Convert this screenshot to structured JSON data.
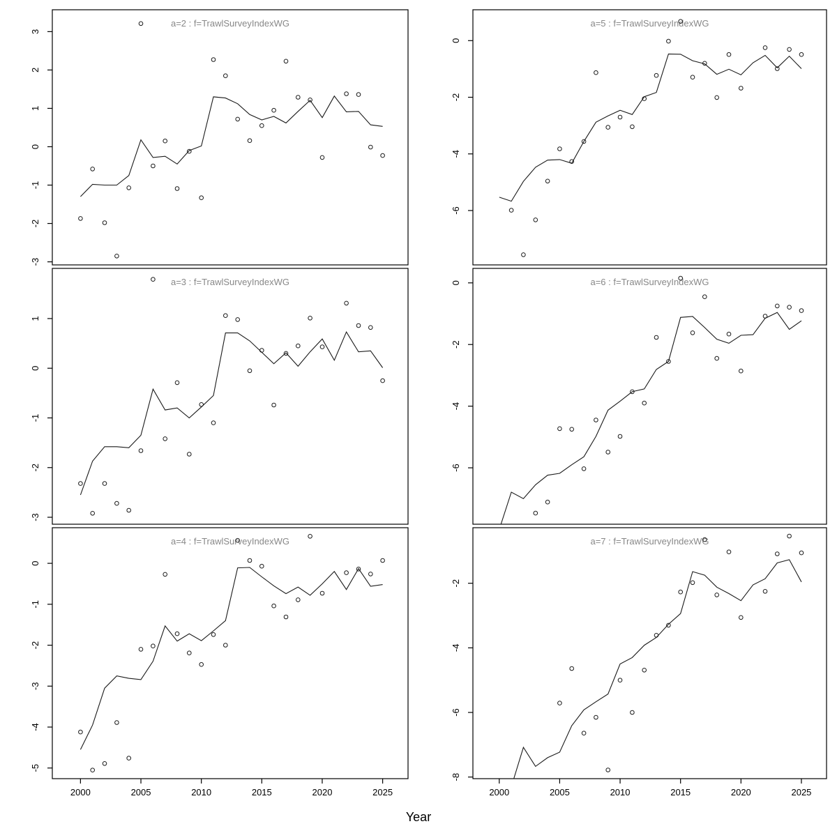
{
  "figure": {
    "xlabel": "Year",
    "background": "#ffffff",
    "title_color": "#888888",
    "axis_color": "#000000",
    "data_color": "#1a1a1a"
  },
  "chart_data": {
    "type": "scatter+line",
    "layout": "2x3 trellis (lattice), shared Year axis, no grid, no legend",
    "xlabel": "Year",
    "x_ticks": [
      2000,
      2005,
      2010,
      2015,
      2020,
      2025
    ],
    "x": [
      2000,
      2001,
      2002,
      2003,
      2004,
      2005,
      2006,
      2007,
      2008,
      2009,
      2010,
      2011,
      2012,
      2013,
      2014,
      2015,
      2016,
      2017,
      2018,
      2019,
      2020,
      2021,
      2022,
      2023,
      2024,
      2025
    ],
    "panels": [
      {
        "id": "a2",
        "label": "a=2",
        "title": "a=2 : f=TrawlSurveyIndexWG",
        "grid_pos": {
          "row": 0,
          "col": 0
        },
        "ylim": [
          -3.08,
          3.57
        ],
        "xlim": [
          1997.67,
          2027.1
        ],
        "yticks": [
          -3,
          -2,
          -1,
          0,
          1,
          2,
          3
        ],
        "show_x_axis": false,
        "points": [
          -1.87,
          -0.58,
          -1.98,
          -2.85,
          -1.07,
          3.21,
          -0.5,
          0.15,
          -1.09,
          -0.12,
          -1.33,
          2.27,
          1.85,
          0.72,
          0.16,
          0.55,
          0.95,
          2.23,
          1.29,
          1.22,
          -0.28,
          null,
          1.38,
          1.36,
          -0.01,
          -0.23
        ],
        "line": [
          -1.3,
          -0.98,
          -1.0,
          -1.0,
          -0.75,
          0.18,
          -0.28,
          -0.25,
          -0.45,
          -0.1,
          0.02,
          1.3,
          1.27,
          1.12,
          0.84,
          0.7,
          0.79,
          0.62,
          0.92,
          1.21,
          0.76,
          1.32,
          0.91,
          0.92,
          0.57,
          0.53
        ]
      },
      {
        "id": "a5",
        "label": "a=5",
        "title": "a=5 : f=TrawlSurveyIndexWG",
        "grid_pos": {
          "row": 0,
          "col": 1
        },
        "ylim": [
          -7.92,
          1.09
        ],
        "xlim": [
          1997.82,
          2027.08
        ],
        "yticks": [
          0,
          -2,
          -4,
          -6
        ],
        "show_x_axis": false,
        "points": [
          null,
          -5.99,
          -7.56,
          -6.33,
          -4.96,
          -3.82,
          -4.27,
          -3.56,
          -1.13,
          -3.06,
          -2.7,
          -3.04,
          -2.05,
          -1.23,
          -0.02,
          0.68,
          -1.29,
          -0.8,
          -2.01,
          -0.49,
          -1.68,
          null,
          -0.25,
          -0.99,
          -0.31,
          -0.49
        ],
        "line": [
          -5.53,
          -5.67,
          -4.97,
          -4.47,
          -4.22,
          -4.2,
          -4.33,
          -3.56,
          -2.88,
          -2.66,
          -2.46,
          -2.61,
          -1.98,
          -1.83,
          -0.47,
          -0.48,
          -0.71,
          -0.82,
          -1.19,
          -1.01,
          -1.21,
          -0.78,
          -0.52,
          -0.96,
          -0.55,
          -0.99
        ]
      },
      {
        "id": "a3",
        "label": "a=3",
        "title": "a=3 : f=TrawlSurveyIndexWG",
        "grid_pos": {
          "row": 1,
          "col": 0
        },
        "ylim": [
          -3.14,
          2.01
        ],
        "xlim": [
          1997.67,
          2027.1
        ],
        "yticks": [
          1,
          0,
          -1,
          -2,
          -3
        ],
        "show_x_axis": false,
        "points": [
          -2.32,
          -2.92,
          -2.32,
          -2.72,
          -2.86,
          -1.66,
          1.79,
          -1.42,
          -0.29,
          -1.73,
          -0.73,
          -1.1,
          1.06,
          0.98,
          -0.05,
          0.36,
          -0.74,
          0.3,
          0.45,
          1.01,
          0.43,
          null,
          1.31,
          0.86,
          0.82,
          -0.25
        ],
        "line": [
          -2.55,
          -1.87,
          -1.58,
          -1.58,
          -1.6,
          -1.35,
          -0.42,
          -0.84,
          -0.8,
          -1.0,
          -0.78,
          -0.55,
          0.71,
          0.71,
          0.55,
          0.32,
          0.09,
          0.31,
          0.04,
          0.33,
          0.59,
          0.16,
          0.73,
          0.33,
          0.35,
          0.01
        ]
      },
      {
        "id": "a6",
        "label": "a=6",
        "title": "a=6 : f=TrawlSurveyIndexWG",
        "grid_pos": {
          "row": 1,
          "col": 1
        },
        "ylim": [
          -7.83,
          0.47
        ],
        "xlim": [
          1997.82,
          2027.08
        ],
        "yticks": [
          0,
          -2,
          -4,
          -6
        ],
        "show_x_axis": false,
        "points": [
          null,
          null,
          null,
          -7.47,
          -7.11,
          -4.73,
          -4.75,
          -6.03,
          -4.45,
          -5.49,
          -4.98,
          -3.53,
          -3.9,
          -1.77,
          -2.55,
          0.15,
          -1.62,
          -0.45,
          -2.45,
          -1.66,
          -2.86,
          null,
          -1.08,
          -0.75,
          -0.79,
          -0.9
        ],
        "line": [
          -8.0,
          -6.79,
          -7.0,
          -6.55,
          -6.24,
          -6.18,
          -5.9,
          -5.64,
          -4.98,
          -4.13,
          -3.84,
          -3.53,
          -3.44,
          -2.81,
          -2.55,
          -1.12,
          -1.09,
          -1.45,
          -1.83,
          -1.96,
          -1.7,
          -1.68,
          -1.15,
          -0.96,
          -1.51,
          -1.23
        ]
      },
      {
        "id": "a4",
        "label": "a=4",
        "title": "a=4 : f=TrawlSurveyIndexWG",
        "grid_pos": {
          "row": 2,
          "col": 0
        },
        "ylim": [
          -5.26,
          0.87
        ],
        "xlim": [
          1997.67,
          2027.1
        ],
        "yticks": [
          0,
          -1,
          -2,
          -3,
          -4,
          -5
        ],
        "show_x_axis": true,
        "points": [
          -4.12,
          -5.05,
          -4.89,
          -3.89,
          -4.76,
          -2.1,
          -2.02,
          -0.27,
          -1.72,
          -2.19,
          -2.47,
          -1.74,
          -2.0,
          0.56,
          0.07,
          -0.07,
          -1.04,
          -1.31,
          -0.89,
          0.66,
          -0.73,
          null,
          -0.23,
          -0.14,
          -0.26,
          0.07
        ],
        "line": [
          -4.55,
          -3.95,
          -3.05,
          -2.75,
          -2.81,
          -2.84,
          -2.39,
          -1.53,
          -1.9,
          -1.72,
          -1.89,
          -1.65,
          -1.4,
          -0.11,
          -0.1,
          -0.33,
          -0.55,
          -0.74,
          -0.58,
          -0.78,
          -0.5,
          -0.2,
          -0.64,
          -0.13,
          -0.56,
          -0.52
        ]
      },
      {
        "id": "a7",
        "label": "a=7",
        "title": "a=7 : f=TrawlSurveyIndexWG",
        "grid_pos": {
          "row": 2,
          "col": 1
        },
        "ylim": [
          -8.05,
          -0.28
        ],
        "xlim": [
          1997.82,
          2027.08
        ],
        "yticks": [
          -2,
          -4,
          -6,
          -8
        ],
        "show_x_axis": true,
        "points": [
          null,
          null,
          null,
          null,
          null,
          -5.71,
          -4.64,
          -6.64,
          -6.15,
          -7.78,
          -5.0,
          -6.0,
          -4.69,
          -3.61,
          -3.3,
          -2.27,
          -1.98,
          -0.65,
          -2.36,
          -1.03,
          -3.06,
          null,
          -2.25,
          -1.09,
          -0.54,
          -1.06
        ],
        "line": [
          null,
          -8.3,
          -7.08,
          -7.67,
          -7.4,
          -7.23,
          -6.41,
          -5.92,
          -5.67,
          -5.43,
          -4.5,
          -4.3,
          -3.92,
          -3.68,
          -3.27,
          -2.94,
          -1.64,
          -1.75,
          -2.12,
          -2.32,
          -2.54,
          -2.05,
          -1.86,
          -1.37,
          -1.27,
          -1.96
        ]
      }
    ]
  }
}
